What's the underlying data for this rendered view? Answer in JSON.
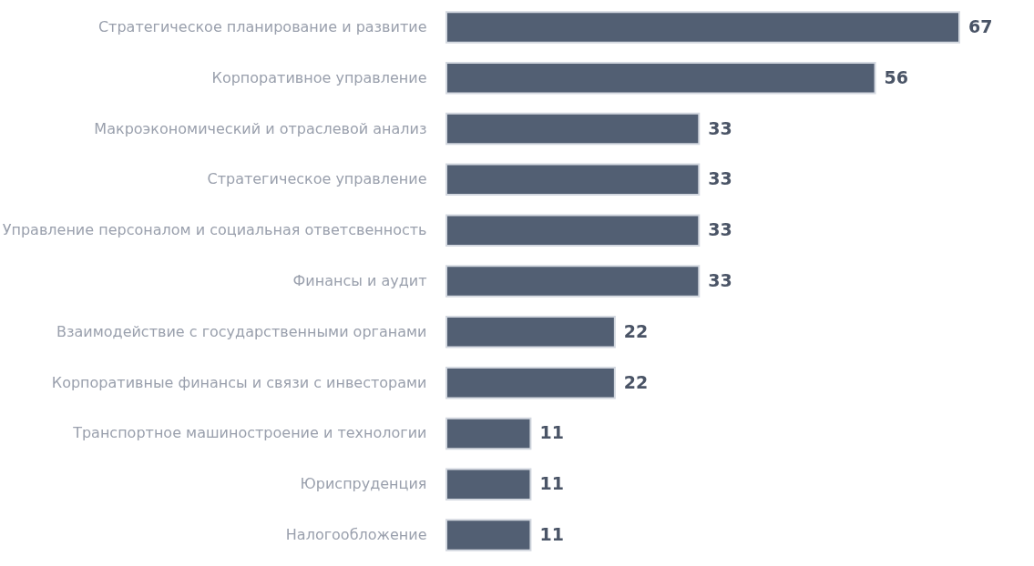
{
  "chart_data": {
    "type": "bar",
    "orientation": "horizontal",
    "data_labels": true,
    "tick_labels": "y",
    "categories": [
      "Стратегическое планирование и развитие",
      "Корпоративное управление",
      "Макроэкономический и отраслевой анализ",
      "Стратегическое управление",
      "Управление персоналом и социальная ответсвенность",
      "Финансы и аудит",
      "Взаимодействие с государственными органами",
      "Корпоративные финансы и связи с инвесторами",
      "Транспортное машиностроение и технологии",
      "Юриспруденция",
      "Налогообложение"
    ],
    "values": [
      67,
      56,
      33,
      33,
      33,
      33,
      22,
      22,
      11,
      11,
      11
    ],
    "color": "#525f73"
  }
}
